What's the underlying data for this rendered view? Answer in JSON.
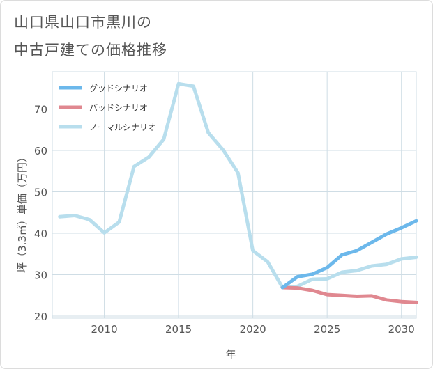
{
  "title_line1": "山口県山口市黒川の",
  "title_line2": "中古戸建ての価格推移",
  "chart_data": {
    "type": "line",
    "title": "山口県山口市黒川の中古戸建ての価格推移",
    "xlabel": "年",
    "ylabel": "坪（3.3㎡）単価（万円）",
    "xlim": [
      2006.5,
      2031
    ],
    "ylim": [
      19.5,
      79
    ],
    "xticks": [
      2010,
      2015,
      2020,
      2025,
      2030
    ],
    "yticks": [
      20,
      30,
      40,
      50,
      60,
      70
    ],
    "legend_position": "top-left",
    "series": [
      {
        "name": "グッドシナリオ",
        "color": "#6cb8eb",
        "x": [
          2022,
          2023,
          2024,
          2025,
          2026,
          2027,
          2028,
          2029,
          2030,
          2031
        ],
        "values": [
          26.9,
          29.5,
          30.1,
          31.7,
          34.8,
          35.8,
          37.8,
          39.8,
          41.3,
          43.0
        ]
      },
      {
        "name": "バッドシナリオ",
        "color": "#e08890",
        "x": [
          2022,
          2023,
          2024,
          2025,
          2026,
          2027,
          2028,
          2029,
          2030,
          2031
        ],
        "values": [
          26.9,
          26.8,
          26.2,
          25.2,
          25.0,
          24.8,
          24.9,
          23.9,
          23.5,
          23.3
        ]
      },
      {
        "name": "ノーマルシナリオ",
        "color": "#b8deed",
        "x": [
          2007,
          2008,
          2009,
          2010,
          2011,
          2012,
          2013,
          2014,
          2015,
          2016,
          2017,
          2018,
          2019,
          2020,
          2021,
          2022,
          2023,
          2024,
          2025,
          2026,
          2027,
          2028,
          2029,
          2030,
          2031
        ],
        "values": [
          44.0,
          44.3,
          43.3,
          40.1,
          42.7,
          56.1,
          58.4,
          62.7,
          76.1,
          75.5,
          64.3,
          60.1,
          54.6,
          35.8,
          33.1,
          26.9,
          27.2,
          28.9,
          29.0,
          30.6,
          31.0,
          32.1,
          32.5,
          33.8,
          34.2
        ]
      }
    ]
  }
}
